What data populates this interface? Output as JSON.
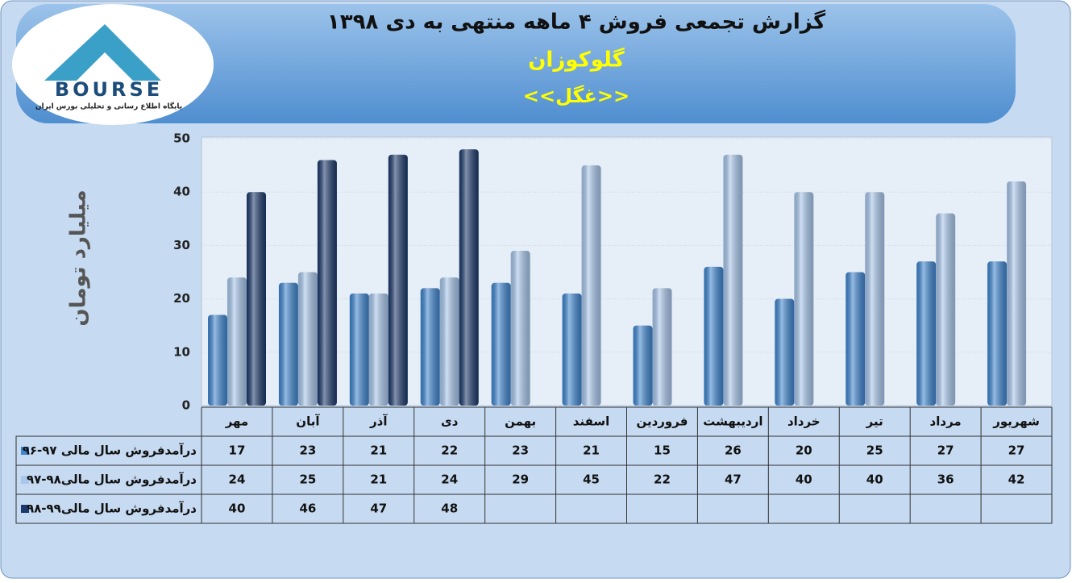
{
  "logo": {
    "name": "BOURSE",
    "tagline": "پایگاه اطلاع رسانی و تحلیلی بورس ایران"
  },
  "chart_data": {
    "type": "bar",
    "title": "گزارش تجمعی  فروش ۴ ماهه منتهی به دی ۱۳۹۸",
    "subtitle": "گلوکوزان",
    "symbol": "<<غگل>>",
    "y_label": "میلیارد تومان",
    "categories": [
      "مهر",
      "آبان",
      "آذر",
      "دی",
      "بهمن",
      "اسفند",
      "فروردین",
      "اردیبهشت",
      "خرداد",
      "تیر",
      "مرداد",
      "شهریور"
    ],
    "series": [
      {
        "name": "درآمدفروش سال مالی ۹۷-۹۶",
        "color": "#3f86d0",
        "values": [
          17,
          23,
          21,
          22,
          23,
          21,
          15,
          26,
          20,
          25,
          27,
          27
        ]
      },
      {
        "name": "درآمدفروش سال مالی۹۸-۹۷",
        "color": "#a8c7ec",
        "values": [
          24,
          25,
          21,
          24,
          29,
          45,
          22,
          47,
          40,
          40,
          36,
          42
        ]
      },
      {
        "name": "درآمدفروش سال مالی۹۹-۹۸",
        "color": "#1d3a6c",
        "values": [
          40,
          46,
          47,
          48,
          null,
          null,
          null,
          null,
          null,
          null,
          null,
          null
        ]
      }
    ],
    "ylim": [
      0,
      50
    ],
    "yticks": [
      0,
      10,
      20,
      30,
      40,
      50
    ],
    "grid": true
  }
}
